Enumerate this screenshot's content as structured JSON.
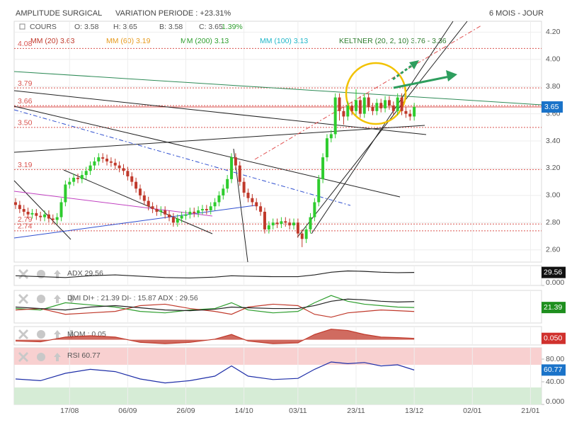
{
  "header": {
    "title": "AMPLITUDE SURGICAL",
    "variation": "VARIATION PERIODE : +23.31%",
    "period": "6 MOIS - JOUR"
  },
  "legend": {
    "cours": "COURS",
    "open": "O: 3.58",
    "high": "H: 3.65",
    "low": "B: 3.58",
    "close": "C: 3.65",
    "change": "1.39%",
    "mm20": "MM (20) 3.63",
    "mm60": "MM (60) 3.19",
    "mm200": "MM (200) 3.13",
    "mm100": "MM (100) 3.13",
    "keltner": "KELTNER (20, 2, 10) 3.76 - 3.36"
  },
  "chart_data": [
    {
      "type": "candlestick",
      "open": [
        2.95,
        2.93,
        2.9,
        2.88,
        2.86,
        2.87,
        2.85,
        2.84,
        2.86,
        2.83,
        2.82,
        2.84,
        2.95,
        3.08,
        3.1,
        3.13,
        3.12,
        3.15,
        3.18,
        3.22,
        3.25,
        3.28,
        3.27,
        3.25,
        3.24,
        3.22,
        3.2,
        3.18,
        3.14,
        3.1,
        3.05,
        3.0,
        2.96,
        2.92,
        2.9,
        2.88,
        2.89,
        2.86,
        2.84,
        2.8,
        2.83,
        2.85,
        2.86,
        2.88,
        2.87,
        2.89,
        2.9,
        2.89,
        2.92,
        2.95,
        3.0,
        3.05,
        3.12,
        3.28,
        3.22,
        3.1,
        3.02,
        2.98,
        2.95,
        2.92,
        2.88,
        2.75,
        2.78,
        2.8,
        2.79,
        2.81,
        2.8,
        2.78,
        2.8,
        2.72,
        2.68,
        2.75,
        2.84,
        2.95,
        3.12,
        3.28,
        3.42,
        3.45,
        3.72,
        3.62,
        3.58,
        3.66,
        3.62,
        3.7,
        3.6,
        3.72,
        3.65,
        3.62,
        3.68,
        3.64,
        3.7,
        3.66,
        3.62,
        3.72,
        3.62,
        3.6,
        3.58
      ],
      "high": [
        2.98,
        2.96,
        2.93,
        2.91,
        2.9,
        2.9,
        2.88,
        2.89,
        2.89,
        2.86,
        2.87,
        2.98,
        3.11,
        3.13,
        3.16,
        3.16,
        3.18,
        3.21,
        3.25,
        3.28,
        3.31,
        3.31,
        3.3,
        3.28,
        3.27,
        3.25,
        3.23,
        3.21,
        3.17,
        3.13,
        3.08,
        3.03,
        2.99,
        2.95,
        2.93,
        2.92,
        2.92,
        2.89,
        2.87,
        2.86,
        2.88,
        2.89,
        2.91,
        2.91,
        2.92,
        2.93,
        2.93,
        2.95,
        2.98,
        3.03,
        3.08,
        3.15,
        3.31,
        3.31,
        3.25,
        3.13,
        3.05,
        3.01,
        2.98,
        2.95,
        2.91,
        2.81,
        2.83,
        2.83,
        2.84,
        2.84,
        2.83,
        2.83,
        2.83,
        2.75,
        2.78,
        2.87,
        2.98,
        3.15,
        3.31,
        3.45,
        3.48,
        3.75,
        3.75,
        3.65,
        3.69,
        3.69,
        3.78,
        3.73,
        3.75,
        3.75,
        3.68,
        3.71,
        3.71,
        3.73,
        3.73,
        3.69,
        3.75,
        3.75,
        3.65,
        3.63,
        3.68
      ],
      "low": [
        2.9,
        2.87,
        2.85,
        2.83,
        2.83,
        2.82,
        2.81,
        2.81,
        2.8,
        2.79,
        2.79,
        2.81,
        2.92,
        3.05,
        3.07,
        3.09,
        3.09,
        3.12,
        3.15,
        3.19,
        3.22,
        3.24,
        3.22,
        3.21,
        3.19,
        3.17,
        3.15,
        3.11,
        3.07,
        3.02,
        2.97,
        2.93,
        2.89,
        2.87,
        2.85,
        2.85,
        2.83,
        2.81,
        2.77,
        2.77,
        2.8,
        2.82,
        2.83,
        2.84,
        2.84,
        2.86,
        2.86,
        2.86,
        2.89,
        2.92,
        2.97,
        3.02,
        3.09,
        3.19,
        3.07,
        2.99,
        2.95,
        2.92,
        2.89,
        2.85,
        2.72,
        2.72,
        2.75,
        2.76,
        2.76,
        2.77,
        2.75,
        2.75,
        2.69,
        2.62,
        2.65,
        2.72,
        2.81,
        2.92,
        3.09,
        3.25,
        3.39,
        3.42,
        3.55,
        3.52,
        3.55,
        3.59,
        3.59,
        3.57,
        3.57,
        3.62,
        3.59,
        3.59,
        3.61,
        3.61,
        3.63,
        3.59,
        3.59,
        3.59,
        3.57,
        3.55,
        3.55
      ],
      "close": [
        2.93,
        2.9,
        2.88,
        2.86,
        2.87,
        2.85,
        2.84,
        2.86,
        2.83,
        2.82,
        2.84,
        2.95,
        3.08,
        3.1,
        3.13,
        3.12,
        3.15,
        3.18,
        3.22,
        3.25,
        3.28,
        3.27,
        3.25,
        3.24,
        3.22,
        3.2,
        3.18,
        3.14,
        3.1,
        3.05,
        3.0,
        2.96,
        2.92,
        2.9,
        2.88,
        2.89,
        2.86,
        2.84,
        2.8,
        2.83,
        2.85,
        2.86,
        2.88,
        2.87,
        2.89,
        2.9,
        2.89,
        2.92,
        2.95,
        3.0,
        3.05,
        3.12,
        3.28,
        3.22,
        3.1,
        3.02,
        2.98,
        2.95,
        2.92,
        2.88,
        2.75,
        2.78,
        2.8,
        2.79,
        2.81,
        2.8,
        2.78,
        2.8,
        2.72,
        2.68,
        2.75,
        2.84,
        2.95,
        3.12,
        3.28,
        3.42,
        3.45,
        3.72,
        3.62,
        3.58,
        3.66,
        3.62,
        3.7,
        3.6,
        3.72,
        3.65,
        3.62,
        3.68,
        3.64,
        3.7,
        3.66,
        3.62,
        3.72,
        3.62,
        3.6,
        3.58,
        3.65
      ],
      "up_color": "#2ecc2e",
      "down_color": "#c0392b",
      "ylim": [
        2.51,
        4.28
      ],
      "yticks": [
        {
          "value": 2.6,
          "label": "2.60"
        },
        {
          "value": 2.8,
          "label": "2.80"
        },
        {
          "value": 3.0,
          "label": "3.00"
        },
        {
          "value": 3.2,
          "label": "3.20"
        },
        {
          "value": 3.4,
          "label": "3.40"
        },
        {
          "value": 3.6,
          "label": "3.60"
        },
        {
          "value": 3.8,
          "label": "3.80"
        },
        {
          "value": 4.0,
          "label": "4.00"
        },
        {
          "value": 4.2,
          "label": "4.20"
        }
      ],
      "xlim": [
        -0.34,
        126.66
      ],
      "xticks": [
        {
          "value": 13,
          "label": "17/08"
        },
        {
          "value": 27,
          "label": "06/09"
        },
        {
          "value": 41,
          "label": "26/09"
        },
        {
          "value": 55,
          "label": "14/10"
        },
        {
          "value": 68,
          "label": "03/11"
        },
        {
          "value": 82,
          "label": "23/11"
        },
        {
          "value": 96,
          "label": "13/12"
        },
        {
          "value": 110,
          "label": "02/01"
        },
        {
          "value": 124,
          "label": "21/01"
        }
      ],
      "levels": [
        4.08,
        3.79,
        3.66,
        {
          "value": 3.5,
          "label": "3.50"
        },
        3.19,
        2.79,
        2.74
      ],
      "level_color": "#d9534f",
      "last_price": 3.65,
      "last_color": "#1a73c9",
      "grid": true
    },
    {
      "type": "line",
      "title": "ADX 29.56",
      "x": [
        0,
        6,
        12,
        18,
        24,
        30,
        36,
        42,
        48,
        52,
        56,
        62,
        68,
        72,
        76,
        80,
        84,
        88,
        92,
        96
      ],
      "series": [
        {
          "color": "#222222",
          "values": [
            22,
            20,
            18,
            22,
            24,
            21,
            18,
            17,
            19,
            22,
            21,
            20,
            20,
            24,
            30,
            33,
            32,
            30,
            29,
            29.56
          ]
        }
      ],
      "ylim": [
        0,
        45
      ],
      "yticks": [
        {
          "value": 0,
          "label": "0.000"
        }
      ],
      "badge": 29.56,
      "badge_color": "#111111"
    },
    {
      "type": "line",
      "title": "DMI DI+ : 21.39 DI- : 15.87 ADX : 29.56",
      "x": [
        0,
        6,
        12,
        18,
        24,
        30,
        36,
        42,
        48,
        52,
        56,
        62,
        68,
        72,
        76,
        80,
        84,
        88,
        92,
        96
      ],
      "series": [
        {
          "color": "#2e9e2e",
          "values": [
            20,
            18,
            28,
            25,
            22,
            16,
            14,
            18,
            20,
            28,
            18,
            14,
            16,
            28,
            38,
            30,
            26,
            24,
            22,
            21.39
          ]
        },
        {
          "color": "#c0392b",
          "values": [
            18,
            20,
            12,
            14,
            16,
            24,
            26,
            20,
            16,
            12,
            22,
            26,
            24,
            12,
            8,
            14,
            16,
            18,
            17,
            15.87
          ]
        },
        {
          "color": "#222222",
          "values": [
            22,
            20,
            18,
            22,
            24,
            21,
            18,
            17,
            19,
            22,
            21,
            20,
            20,
            24,
            30,
            33,
            32,
            30,
            29,
            29.56
          ]
        }
      ],
      "ylim": [
        0,
        45
      ],
      "badge": 21.39,
      "badge_color": "#1e8f1e"
    },
    {
      "type": "area",
      "title": "MOM : 0.05",
      "x": [
        0,
        6,
        12,
        18,
        24,
        30,
        36,
        42,
        48,
        52,
        56,
        62,
        68,
        72,
        76,
        80,
        84,
        88,
        92,
        96
      ],
      "series": [
        {
          "color": "#c0392b",
          "values": [
            -0.05,
            -0.08,
            0.1,
            0.15,
            0.1,
            -0.1,
            -0.15,
            -0.1,
            0.02,
            0.2,
            -0.05,
            -0.15,
            -0.12,
            0.2,
            0.4,
            0.35,
            0.2,
            0.1,
            0.08,
            0.05
          ]
        }
      ],
      "ylim": [
        -0.2,
        0.5
      ],
      "yticks": [
        {
          "value": 0,
          "label": "0.000"
        }
      ],
      "badge": {
        "value": 0.05,
        "label": "0.050"
      },
      "badge_color": "#d0312d"
    },
    {
      "type": "line",
      "title": "RSI 60.77",
      "x": [
        0,
        6,
        12,
        18,
        24,
        30,
        36,
        42,
        48,
        52,
        56,
        62,
        68,
        72,
        76,
        80,
        84,
        88,
        92,
        96
      ],
      "series": [
        {
          "color": "#1f2fa8",
          "values": [
            45,
            42,
            55,
            62,
            58,
            45,
            38,
            42,
            50,
            68,
            50,
            44,
            46,
            62,
            75,
            72,
            74,
            68,
            70,
            60.77
          ]
        }
      ],
      "ylim": [
        0,
        100
      ],
      "yticks": [
        {
          "value": 0,
          "label": "0.000"
        },
        {
          "value": 40,
          "label": "40.00"
        },
        {
          "value": 80,
          "label": "80.00"
        }
      ],
      "zones": [
        {
          "from": 70,
          "to": 100,
          "color": "#f8d0d0"
        },
        {
          "from": 0,
          "to": 30,
          "color": "#d6ecd6"
        }
      ],
      "badge": 60.77,
      "badge_color": "#1a73c9"
    }
  ]
}
